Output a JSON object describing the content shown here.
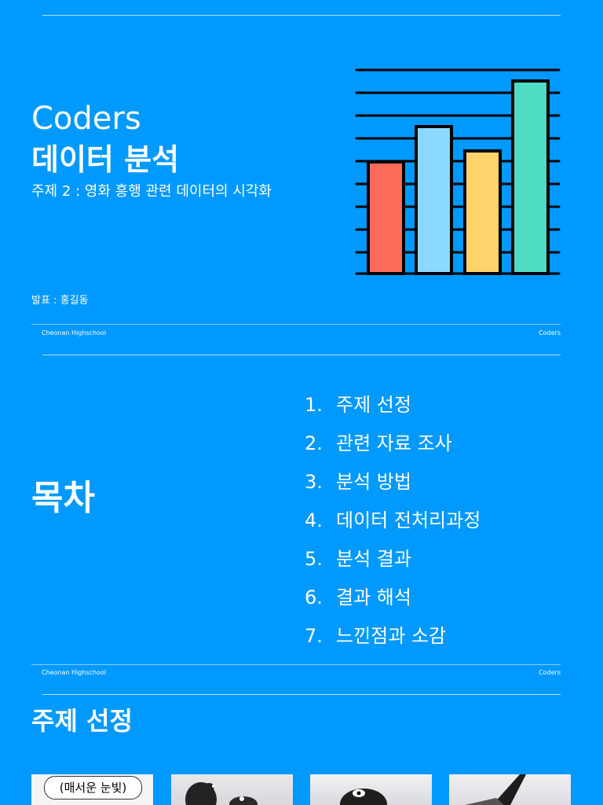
{
  "slide1": {
    "title_en": "Coders",
    "title_ko": "데이터 분석",
    "subtitle": "주제 2 : 영화 흥행 관련 데이터의 시각화",
    "presenter": "발표 : 홍길동",
    "footer_left": "Cheonan Highschool",
    "footer_right": "Coders",
    "chart_icon": "bar-chart-icon",
    "bar_colors": [
      "#ff6b5b",
      "#8cd9ff",
      "#ffd36b",
      "#4fdcc4"
    ]
  },
  "slide2": {
    "title": "목차",
    "items": [
      {
        "num": "1.",
        "label": "주제 선정"
      },
      {
        "num": "2.",
        "label": "관련 자료 조사"
      },
      {
        "num": "3.",
        "label": "분석 방법"
      },
      {
        "num": "4.",
        "label": "데이터 전처리과정"
      },
      {
        "num": "5.",
        "label": "분석 결과"
      },
      {
        "num": "6.",
        "label": "결과 해석"
      },
      {
        "num": "7.",
        "label": "느낀점과 소감"
      }
    ],
    "footer_left": "Cheonan Highschool",
    "footer_right": "Coders"
  },
  "slide3": {
    "title": "주제 선정",
    "photos": [
      {
        "caption": "(매서운 눈빛)",
        "icon": "penguin-cartoon-image"
      },
      {
        "caption": "",
        "icon": "penguins-photo"
      },
      {
        "caption": "",
        "icon": "penguin-photo"
      },
      {
        "caption": "",
        "icon": "penguin-flipper-photo"
      }
    ]
  },
  "colors": {
    "background": "#0099ff",
    "text": "#ffffff"
  }
}
